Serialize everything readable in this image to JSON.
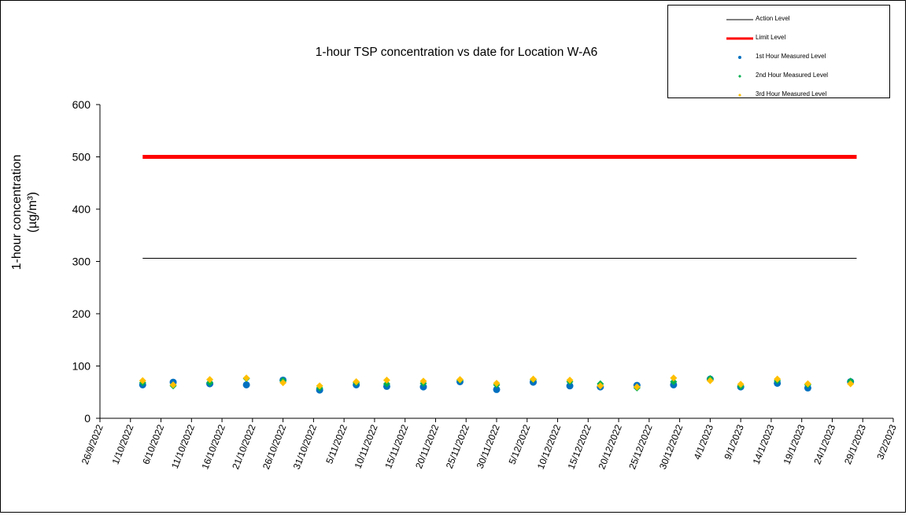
{
  "chart_data": {
    "type": "scatter",
    "title": "1-hour TSP concentration vs date for Location  W-A6",
    "ylabel_line1": "1-hour concentration",
    "ylabel_line2": "(µg/m³)",
    "xlabel": "",
    "ylim": [
      0,
      600
    ],
    "yticks": [
      0,
      100,
      200,
      300,
      400,
      500,
      600
    ],
    "xlim": [
      "2022-09-26",
      "2023-02-03"
    ],
    "xtick_labels": [
      "26/9/2022",
      "1/10/2022",
      "6/10/2022",
      "11/10/2022",
      "16/10/2022",
      "21/10/2022",
      "26/10/2022",
      "31/10/2022",
      "5/11/2022",
      "10/11/2022",
      "15/11/2022",
      "20/11/2022",
      "25/11/2022",
      "30/11/2022",
      "5/12/2022",
      "10/12/2022",
      "15/12/2022",
      "20/12/2022",
      "25/12/2022",
      "30/12/2022",
      "4/1/2023",
      "9/1/2023",
      "14/1/2023",
      "19/1/2023",
      "24/1/2023",
      "29/1/2023",
      "3/2/2023"
    ],
    "grid": false,
    "legend_position": "top-right",
    "reference_lines": [
      {
        "name": "Action Level",
        "y": 306,
        "x_start": "2022-10-03",
        "x_end": "2023-01-28",
        "color": "#000000"
      },
      {
        "name": "Limit Level",
        "y": 500,
        "x_start": "2022-10-03",
        "x_end": "2023-01-28",
        "color": "#ff0000"
      }
    ],
    "x": [
      "2022-10-03",
      "2022-10-08",
      "2022-10-14",
      "2022-10-20",
      "2022-10-26",
      "2022-11-01",
      "2022-11-07",
      "2022-11-12",
      "2022-11-18",
      "2022-11-24",
      "2022-11-30",
      "2022-12-06",
      "2022-12-12",
      "2022-12-17",
      "2022-12-23",
      "2022-12-29",
      "2023-01-04",
      "2023-01-09",
      "2023-01-15",
      "2023-01-20",
      "2023-01-27"
    ],
    "series": [
      {
        "name": "1st Hour Measured Level",
        "color": "#0070c0",
        "marker": "circle",
        "values": [
          64,
          69,
          66,
          64,
          73,
          54,
          64,
          61,
          60,
          70,
          55,
          69,
          62,
          60,
          63,
          64,
          75,
          60,
          67,
          58,
          70
        ]
      },
      {
        "name": "2nd Hour Measured Level",
        "color": "#00b050",
        "marker": "diamond",
        "values": [
          68,
          62,
          68,
          76,
          72,
          58,
          68,
          66,
          67,
          73,
          64,
          74,
          70,
          66,
          58,
          70,
          76,
          61,
          72,
          64,
          71
        ]
      },
      {
        "name": "3rd Hour Measured Level",
        "color": "#ffc000",
        "marker": "diamond",
        "values": [
          72,
          64,
          74,
          77,
          68,
          62,
          70,
          73,
          71,
          74,
          67,
          75,
          73,
          62,
          60,
          77,
          72,
          65,
          75,
          66,
          66
        ]
      }
    ]
  },
  "legend": {
    "items": [
      {
        "label": "Action Level",
        "kind": "line",
        "color": "#000000"
      },
      {
        "label": "Limit Level",
        "kind": "thickline",
        "color": "#ff0000"
      },
      {
        "label": "1st Hour Measured Level",
        "kind": "circle",
        "color": "#0070c0"
      },
      {
        "label": "2nd Hour Measured Level",
        "kind": "diamond",
        "color": "#00b050"
      },
      {
        "label": "3rd Hour Measured Level",
        "kind": "diamond",
        "color": "#ffc000"
      }
    ]
  }
}
